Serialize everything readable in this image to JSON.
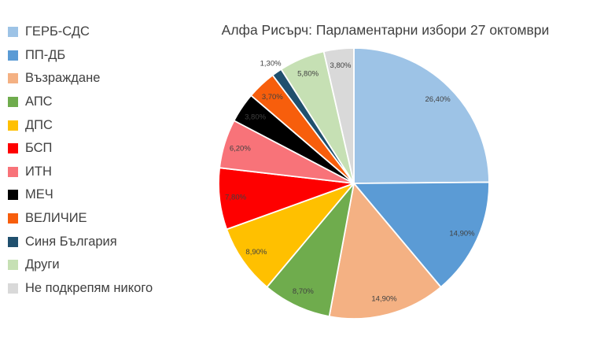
{
  "chart_data": {
    "type": "pie",
    "title": "Алфа Рисърч: Парламентарни избори 27 октомври",
    "legend_position": "left",
    "start_angle_deg": 0,
    "direction": "clockwise",
    "label_color": "#404040",
    "background_color": "#ffffff",
    "slices": [
      {
        "name": "ГЕРБ-СДС",
        "value": 26.4,
        "label": "26,40%",
        "color": "#9DC3E6"
      },
      {
        "name": "ПП-ДБ",
        "value": 14.9,
        "label": "14,90%",
        "color": "#5B9BD5"
      },
      {
        "name": "Възраждане",
        "value": 14.9,
        "label": "14,90%",
        "color": "#F4B183"
      },
      {
        "name": "АПС",
        "value": 8.7,
        "label": "8,70%",
        "color": "#6FAC4D"
      },
      {
        "name": "ДПС",
        "value": 8.9,
        "label": "8,90%",
        "color": "#FFC000"
      },
      {
        "name": "БСП",
        "value": 7.8,
        "label": "7,80%",
        "color": "#FE0000"
      },
      {
        "name": "ИТН",
        "value": 6.2,
        "label": "6,20%",
        "color": "#F87379"
      },
      {
        "name": "МЕЧ",
        "value": 3.8,
        "label": "3,80%",
        "color": "#000000"
      },
      {
        "name": "ВЕЛИЧИЕ",
        "value": 3.7,
        "label": "3,70%",
        "color": "#F75E0C"
      },
      {
        "name": "Синя България",
        "value": 1.3,
        "label": "1,30%",
        "color": "#20506E"
      },
      {
        "name": "Други",
        "value": 5.8,
        "label": "5,80%",
        "color": "#C6E0B4"
      },
      {
        "name": "Не подкрепям никого",
        "value": 3.8,
        "label": "3,80%",
        "color": "#D9D9D9"
      }
    ]
  }
}
